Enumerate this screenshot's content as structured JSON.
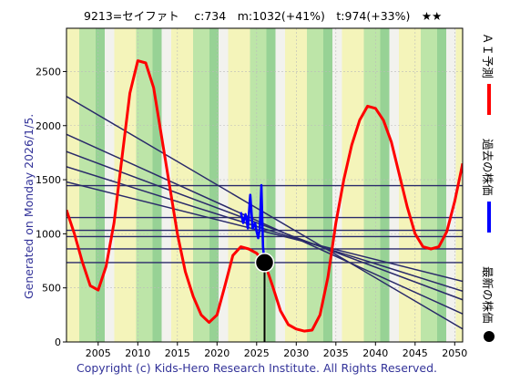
{
  "header": {
    "title": "9213=セイファト　 c:734　m:1032(+41%)　t:974(+33%)　★★"
  },
  "side_label": "Generated on Monday 2026/1/5.",
  "copyright": "Copyright (c) Kids-Hero Research Institute. All Rights Reserved.",
  "legend": [
    {
      "label": "ＡＩ予測",
      "color": "#ff0000",
      "marker": "line"
    },
    {
      "label": "過去の株価",
      "color": "#0000ff",
      "marker": "line"
    },
    {
      "label": "最新の株価",
      "color": "#000000",
      "marker": "dot"
    }
  ],
  "chart_data": {
    "type": "line",
    "title": "9213=セイファト　 c:734　m:1032(+41%)　t:974(+33%)　★★",
    "xlabel": "",
    "ylabel": "",
    "xlim": [
      2001,
      2051
    ],
    "ylim": [
      0,
      2900
    ],
    "xticks": [
      2005,
      2010,
      2015,
      2020,
      2025,
      2030,
      2035,
      2040,
      2045,
      2050
    ],
    "yticks": [
      0,
      500,
      1000,
      1500,
      2000,
      2500
    ],
    "grid": true,
    "latest_price": {
      "x": 2026.0,
      "y": 734,
      "color": "#000000"
    },
    "horizontal_levels": [
      1445,
      1150,
      1032,
      974,
      860,
      734
    ],
    "trend_lines": [
      {
        "x": [
          2001,
          2051
        ],
        "y": [
          2270,
          120
        ]
      },
      {
        "x": [
          2001,
          2051
        ],
        "y": [
          1920,
          260
        ]
      },
      {
        "x": [
          2001,
          2051
        ],
        "y": [
          1760,
          390
        ]
      },
      {
        "x": [
          2001,
          2051
        ],
        "y": [
          1620,
          470
        ]
      },
      {
        "x": [
          2001,
          2051
        ],
        "y": [
          1480,
          560
        ]
      }
    ],
    "series": [
      {
        "name": "ＡＩ予測",
        "color": "#ff0000",
        "x": [
          2001,
          2002,
          2003,
          2004,
          2005,
          2006,
          2007,
          2008,
          2009,
          2010,
          2011,
          2012,
          2013,
          2014,
          2015,
          2016,
          2017,
          2018,
          2019,
          2020,
          2021,
          2022,
          2023,
          2024,
          2025,
          2026,
          2027,
          2028,
          2029,
          2030,
          2031,
          2032,
          2033,
          2034,
          2035,
          2036,
          2037,
          2038,
          2039,
          2040,
          2041,
          2042,
          2043,
          2044,
          2045,
          2046,
          2047,
          2048,
          2049,
          2050,
          2051
        ],
        "y": [
          1220,
          1000,
          740,
          520,
          480,
          700,
          1100,
          1700,
          2300,
          2600,
          2580,
          2350,
          1900,
          1450,
          1000,
          650,
          420,
          250,
          180,
          250,
          520,
          800,
          880,
          860,
          820,
          734,
          520,
          290,
          160,
          120,
          100,
          110,
          250,
          600,
          1100,
          1500,
          1820,
          2050,
          2180,
          2160,
          2050,
          1850,
          1550,
          1250,
          1000,
          880,
          860,
          880,
          1020,
          1300,
          1650
        ]
      },
      {
        "name": "過去の株価",
        "color": "#0000ff",
        "x": [
          2023.0,
          2023.3,
          2023.6,
          2023.9,
          2024.2,
          2024.5,
          2024.8,
          2025.0,
          2025.2,
          2025.4,
          2025.6,
          2025.8,
          2026.0
        ],
        "y": [
          1200,
          1100,
          1180,
          1050,
          1360,
          1050,
          1100,
          1020,
          960,
          1050,
          1450,
          880,
          734
        ]
      }
    ]
  }
}
